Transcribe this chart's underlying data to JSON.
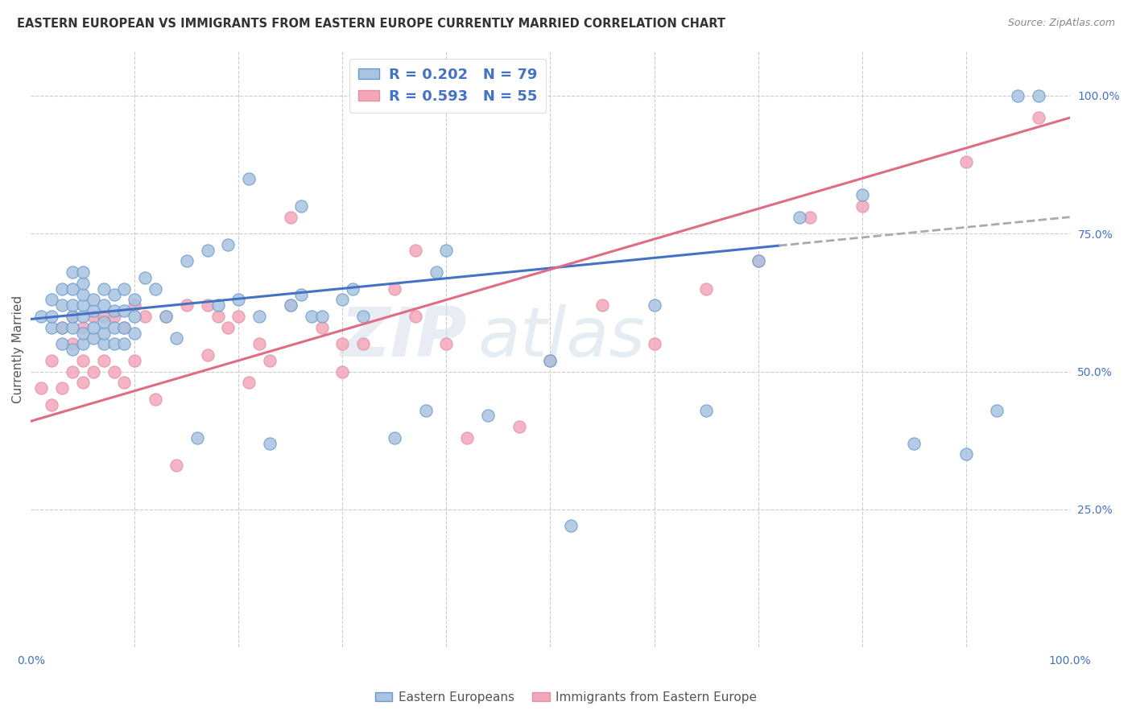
{
  "title": "EASTERN EUROPEAN VS IMMIGRANTS FROM EASTERN EUROPE CURRENTLY MARRIED CORRELATION CHART",
  "source": "Source: ZipAtlas.com",
  "ylabel": "Currently Married",
  "ylabel_right_ticks": [
    "100.0%",
    "75.0%",
    "50.0%",
    "25.0%"
  ],
  "ylabel_right_vals": [
    1.0,
    0.75,
    0.5,
    0.25
  ],
  "xlim": [
    0.0,
    1.0
  ],
  "ylim": [
    0.0,
    1.08
  ],
  "legend1_r": "0.202",
  "legend1_n": "79",
  "legend2_r": "0.593",
  "legend2_n": "55",
  "color_blue": "#a8c4e0",
  "color_pink": "#f4a7b9",
  "color_blue_line": "#4472c4",
  "color_pink_line": "#e06c84",
  "color_dashed": "#aaaaaa",
  "color_blue_text": "#4472c4",
  "watermark_zip": "ZIP",
  "watermark_atlas": "atlas",
  "blue_line_start_y": 0.595,
  "blue_line_end_y": 0.78,
  "blue_line_solid_end_x": 0.72,
  "pink_line_start_y": 0.41,
  "pink_line_end_y": 0.96,
  "blue_scatter_x": [
    0.01,
    0.02,
    0.02,
    0.02,
    0.03,
    0.03,
    0.03,
    0.03,
    0.04,
    0.04,
    0.04,
    0.04,
    0.04,
    0.04,
    0.05,
    0.05,
    0.05,
    0.05,
    0.05,
    0.05,
    0.05,
    0.06,
    0.06,
    0.06,
    0.06,
    0.07,
    0.07,
    0.07,
    0.07,
    0.07,
    0.08,
    0.08,
    0.08,
    0.08,
    0.09,
    0.09,
    0.09,
    0.09,
    0.1,
    0.1,
    0.1,
    0.11,
    0.12,
    0.13,
    0.14,
    0.15,
    0.16,
    0.17,
    0.18,
    0.19,
    0.2,
    0.21,
    0.22,
    0.23,
    0.25,
    0.26,
    0.26,
    0.27,
    0.28,
    0.3,
    0.31,
    0.32,
    0.35,
    0.38,
    0.39,
    0.4,
    0.44,
    0.5,
    0.52,
    0.6,
    0.65,
    0.7,
    0.74,
    0.8,
    0.85,
    0.9,
    0.93,
    0.95,
    0.97
  ],
  "blue_scatter_y": [
    0.6,
    0.58,
    0.6,
    0.63,
    0.55,
    0.58,
    0.62,
    0.65,
    0.54,
    0.58,
    0.6,
    0.62,
    0.65,
    0.68,
    0.55,
    0.57,
    0.6,
    0.62,
    0.64,
    0.66,
    0.68,
    0.56,
    0.58,
    0.61,
    0.63,
    0.55,
    0.57,
    0.59,
    0.62,
    0.65,
    0.55,
    0.58,
    0.61,
    0.64,
    0.55,
    0.58,
    0.61,
    0.65,
    0.57,
    0.6,
    0.63,
    0.67,
    0.65,
    0.6,
    0.56,
    0.7,
    0.38,
    0.72,
    0.62,
    0.73,
    0.63,
    0.85,
    0.6,
    0.37,
    0.62,
    0.64,
    0.8,
    0.6,
    0.6,
    0.63,
    0.65,
    0.6,
    0.38,
    0.43,
    0.68,
    0.72,
    0.42,
    0.52,
    0.22,
    0.62,
    0.43,
    0.7,
    0.78,
    0.82,
    0.37,
    0.35,
    0.43,
    1.0,
    1.0
  ],
  "pink_scatter_x": [
    0.01,
    0.02,
    0.02,
    0.03,
    0.03,
    0.04,
    0.04,
    0.04,
    0.05,
    0.05,
    0.05,
    0.06,
    0.06,
    0.07,
    0.07,
    0.08,
    0.08,
    0.09,
    0.09,
    0.1,
    0.1,
    0.11,
    0.12,
    0.13,
    0.14,
    0.15,
    0.17,
    0.17,
    0.18,
    0.19,
    0.2,
    0.21,
    0.22,
    0.23,
    0.25,
    0.25,
    0.28,
    0.3,
    0.3,
    0.32,
    0.35,
    0.37,
    0.37,
    0.4,
    0.42,
    0.47,
    0.5,
    0.55,
    0.6,
    0.65,
    0.7,
    0.75,
    0.8,
    0.9,
    0.97
  ],
  "pink_scatter_y": [
    0.47,
    0.44,
    0.52,
    0.47,
    0.58,
    0.5,
    0.55,
    0.6,
    0.48,
    0.52,
    0.58,
    0.5,
    0.6,
    0.52,
    0.6,
    0.5,
    0.6,
    0.48,
    0.58,
    0.52,
    0.62,
    0.6,
    0.45,
    0.6,
    0.33,
    0.62,
    0.53,
    0.62,
    0.6,
    0.58,
    0.6,
    0.48,
    0.55,
    0.52,
    0.62,
    0.78,
    0.58,
    0.5,
    0.55,
    0.55,
    0.65,
    0.72,
    0.6,
    0.55,
    0.38,
    0.4,
    0.52,
    0.62,
    0.55,
    0.65,
    0.7,
    0.78,
    0.8,
    0.88,
    0.96
  ]
}
